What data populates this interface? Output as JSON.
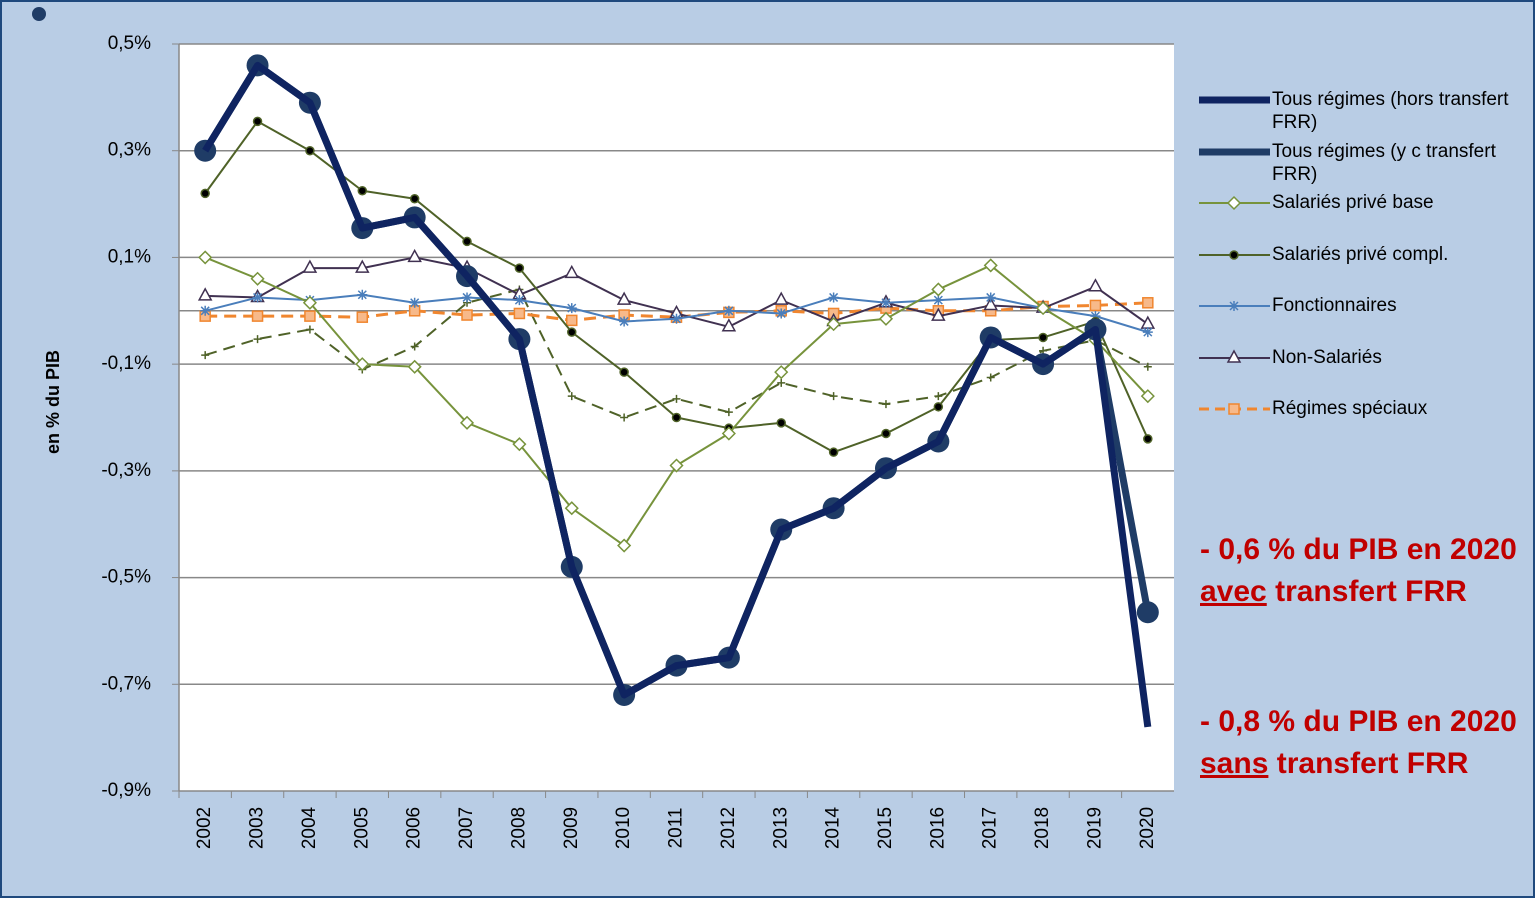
{
  "chart_data": {
    "type": "line",
    "y_label": "en % du PIB",
    "categories": [
      "2002",
      "2003",
      "2004",
      "2005",
      "2006",
      "2007",
      "2008",
      "2009",
      "2010",
      "2011",
      "2012",
      "2013",
      "2014",
      "2015",
      "2016",
      "2017",
      "2018",
      "2019",
      "2020"
    ],
    "ylim": [
      -0.9,
      0.5
    ],
    "yticks": [
      {
        "value": 0.5,
        "label": "0,5%"
      },
      {
        "value": 0.3,
        "label": "0,3%"
      },
      {
        "value": 0.1,
        "label": "0,1%"
      },
      {
        "value": -0.1,
        "label": "-0,1%"
      },
      {
        "value": -0.3,
        "label": "-0,3%"
      },
      {
        "value": -0.5,
        "label": "-0,5%"
      },
      {
        "value": -0.7,
        "label": "-0,7%"
      },
      {
        "value": -0.9,
        "label": "-0,9%"
      }
    ],
    "grid": true,
    "series": [
      {
        "name": "Tous régimes (hors transfert FRR)",
        "color": "#0f2461",
        "width": 7,
        "marker": "none",
        "dash": false,
        "values": [
          0.3,
          0.46,
          0.39,
          0.155,
          0.175,
          0.065,
          -0.053,
          -0.48,
          -0.72,
          -0.665,
          -0.65,
          -0.41,
          -0.37,
          -0.295,
          -0.245,
          -0.05,
          -0.1,
          -0.035,
          -0.78
        ]
      },
      {
        "name": "Tous régimes (y c transfert FRR)",
        "color": "#1f3c66",
        "width": 7,
        "marker": "circle",
        "dash": false,
        "values": [
          0.3,
          0.46,
          0.39,
          0.155,
          0.175,
          0.065,
          -0.053,
          -0.48,
          -0.72,
          -0.665,
          -0.65,
          -0.41,
          -0.37,
          -0.295,
          -0.245,
          -0.05,
          -0.1,
          -0.035,
          -0.565
        ]
      },
      {
        "name": "Salariés  privé base",
        "color": "#77933c",
        "width": 2,
        "marker": "diamond",
        "dash": false,
        "values": [
          0.1,
          0.06,
          0.015,
          -0.1,
          -0.105,
          -0.21,
          -0.25,
          -0.37,
          -0.44,
          -0.29,
          -0.23,
          -0.115,
          -0.025,
          -0.015,
          0.04,
          0.085,
          0.005,
          -0.055,
          -0.16
        ]
      },
      {
        "name": "Salariés  privé compl.",
        "color": "#4f6228",
        "width": 2,
        "marker": "dot",
        "dash": false,
        "values": [
          0.22,
          0.355,
          0.3,
          0.225,
          0.21,
          0.13,
          0.08,
          -0.04,
          -0.115,
          -0.2,
          -0.22,
          -0.21,
          -0.265,
          -0.23,
          -0.18,
          -0.055,
          -0.05,
          -0.02,
          -0.24
        ]
      },
      {
        "name": "Fonctionnaires",
        "color": "#4a7ebb",
        "width": 2,
        "marker": "star",
        "dash": false,
        "values": [
          0.0,
          0.025,
          0.02,
          0.03,
          0.015,
          0.025,
          0.02,
          0.005,
          -0.02,
          -0.015,
          0.0,
          -0.005,
          0.025,
          0.015,
          0.02,
          0.025,
          0.005,
          -0.01,
          -0.04
        ]
      },
      {
        "name": "Non-Salariés",
        "color": "#403151",
        "width": 2,
        "marker": "triangle",
        "dash": false,
        "values": [
          0.028,
          0.025,
          0.08,
          0.08,
          0.1,
          0.08,
          0.03,
          0.07,
          0.02,
          -0.005,
          -0.03,
          0.02,
          -0.02,
          0.015,
          -0.01,
          0.01,
          0.005,
          0.045,
          -0.025
        ]
      },
      {
        "name": "Régimes spéciaux",
        "color": "#f0862f",
        "width": 3,
        "marker": "square",
        "dash": true,
        "values": [
          -0.01,
          -0.01,
          -0.01,
          -0.012,
          0.0,
          -0.008,
          -0.005,
          -0.018,
          -0.008,
          -0.012,
          -0.003,
          0.0,
          -0.005,
          0.005,
          0.0,
          0.0,
          0.008,
          0.01,
          0.015
        ]
      },
      {
        "color": "#4f6228",
        "width": 2,
        "marker": "plus",
        "dash": true,
        "values": [
          -0.083,
          -0.053,
          -0.035,
          -0.11,
          -0.067,
          0.015,
          0.04,
          -0.16,
          -0.2,
          -0.165,
          -0.19,
          -0.135,
          -0.16,
          -0.175,
          -0.16,
          -0.125,
          -0.075,
          -0.055,
          -0.105
        ]
      }
    ],
    "annotations": [
      {
        "before": "- 0,6 % du PIB en 2020 ",
        "underlined": "avec",
        "after": " transfert FRR",
        "color": "#c00000"
      },
      {
        "before": "- 0,8 % du PIB en 2020 ",
        "underlined": "sans",
        "after": " transfert FRR",
        "color": "#c00000"
      }
    ]
  }
}
